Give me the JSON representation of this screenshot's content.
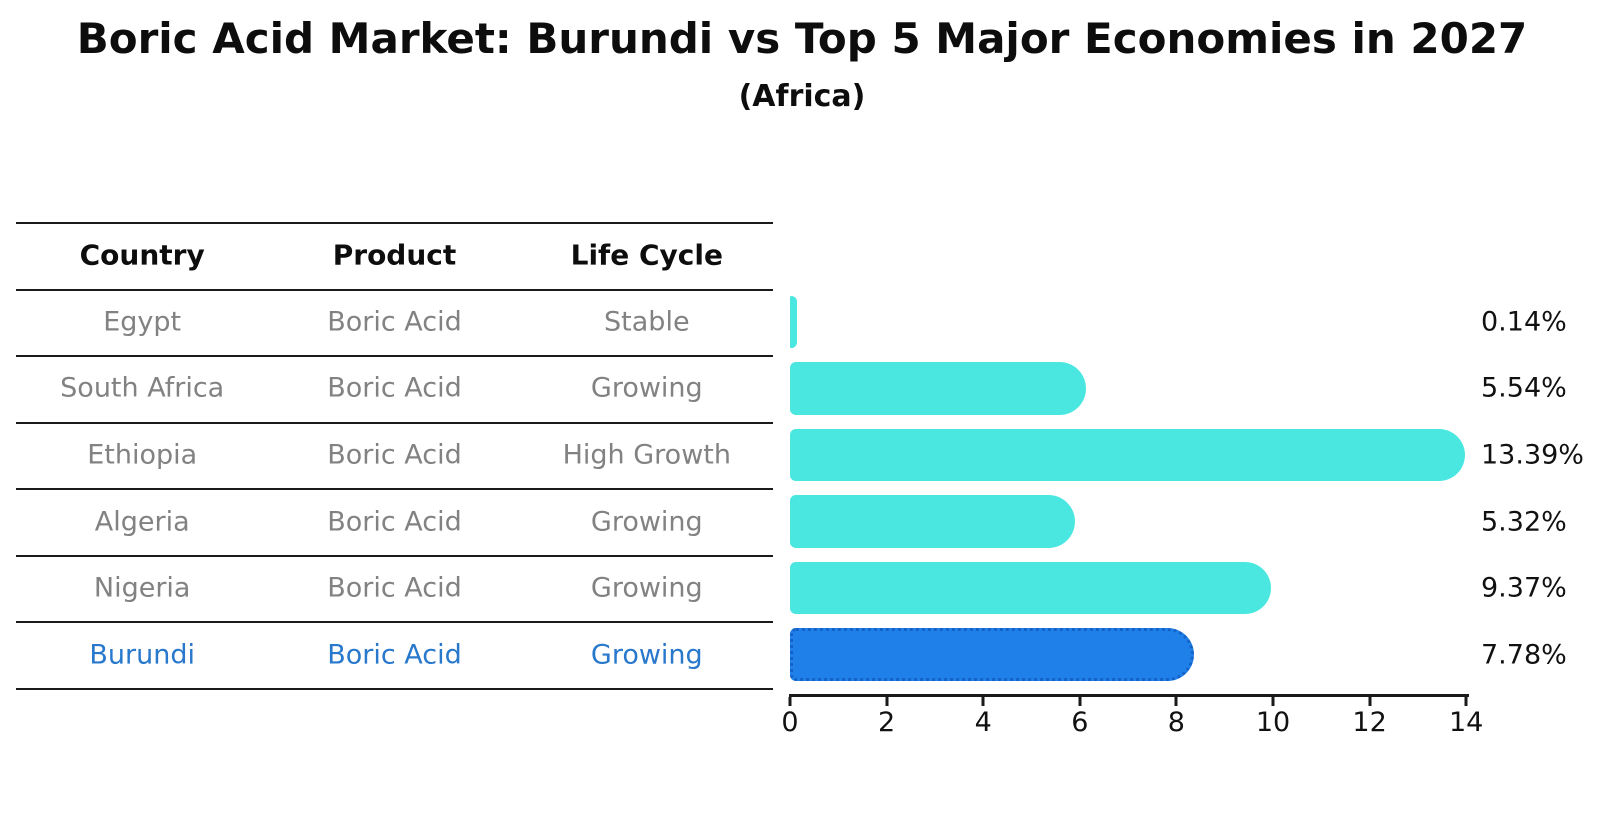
{
  "title": "Boric Acid Market: Burundi vs Top 5 Major Economies in 2027",
  "subtitle": "(Africa)",
  "table": {
    "columns": [
      "Country",
      "Product",
      "Life Cycle"
    ],
    "rows": [
      {
        "country": "Egypt",
        "product": "Boric Acid",
        "life_cycle": "Stable",
        "highlight": false
      },
      {
        "country": "South Africa",
        "product": "Boric Acid",
        "life_cycle": "Growing",
        "highlight": false
      },
      {
        "country": "Ethiopia",
        "product": "Boric Acid",
        "life_cycle": "High Growth",
        "highlight": false
      },
      {
        "country": "Algeria",
        "product": "Boric Acid",
        "life_cycle": "Growing",
        "highlight": false
      },
      {
        "country": "Nigeria",
        "product": "Boric Acid",
        "life_cycle": "Growing",
        "highlight": false
      },
      {
        "country": "Burundi",
        "product": "Boric Acid",
        "life_cycle": "Growing",
        "highlight": true
      }
    ]
  },
  "chart_data": {
    "type": "bar",
    "orientation": "horizontal",
    "title": "Boric Acid Market: Burundi vs Top 5 Major Economies in 2027",
    "subtitle": "(Africa)",
    "categories": [
      "Egypt",
      "South Africa",
      "Ethiopia",
      "Algeria",
      "Nigeria",
      "Burundi"
    ],
    "values": [
      0.14,
      5.54,
      13.39,
      5.32,
      9.37,
      7.78
    ],
    "value_labels": [
      "0.14%",
      "5.54%",
      "13.39%",
      "5.32%",
      "9.37%",
      "7.78%"
    ],
    "highlight_index": 5,
    "x_ticks": [
      0,
      2,
      4,
      6,
      8,
      10,
      12,
      14
    ],
    "xlim": [
      0,
      14
    ],
    "grid": false,
    "legend": false,
    "bar_color": "#4AE7E1",
    "highlight_bar_color": "#1E80E8",
    "highlight_border_color": "#1563C9",
    "highlight_text_color": "#2878CC",
    "table_text_color": "#828282",
    "text_color": "#111111"
  }
}
